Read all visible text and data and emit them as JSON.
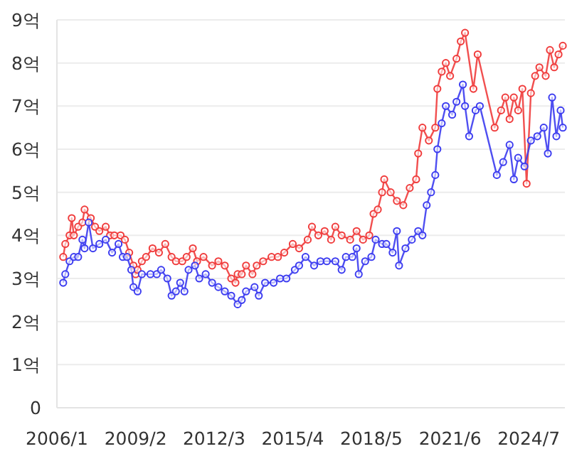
{
  "chart_data": {
    "type": "line",
    "marker": "circle",
    "grid": "y",
    "xlim": [
      "2006-01",
      "2025-12"
    ],
    "ylim": [
      0,
      9
    ],
    "xticks": [
      {
        "value": "2006-01",
        "label": "2006/1"
      },
      {
        "value": "2009-02",
        "label": "2009/2"
      },
      {
        "value": "2012-03",
        "label": "2012/3"
      },
      {
        "value": "2015-04",
        "label": "2015/4"
      },
      {
        "value": "2018-05",
        "label": "2018/5"
      },
      {
        "value": "2021-06",
        "label": "2021/6"
      },
      {
        "value": "2024-07",
        "label": "2024/7"
      }
    ],
    "yticks": [
      0,
      {
        "value": 1,
        "label": "1억"
      },
      {
        "value": 2,
        "label": "2억"
      },
      {
        "value": 3,
        "label": "3억"
      },
      {
        "value": 4,
        "label": "4억"
      },
      {
        "value": 5,
        "label": "5억"
      },
      {
        "value": 6,
        "label": "6억"
      },
      {
        "value": 7,
        "label": "7억"
      },
      {
        "value": 8,
        "label": "8억"
      },
      {
        "value": 9,
        "label": "9억"
      }
    ],
    "series": [
      {
        "color": "#f03c3c",
        "x": [
          "2006-04",
          "2006-05",
          "2006-07",
          "2006-08",
          "2006-09",
          "2006-11",
          "2007-01",
          "2007-02",
          "2007-05",
          "2007-07",
          "2007-09",
          "2007-12",
          "2008-02",
          "2008-04",
          "2008-07",
          "2008-09",
          "2008-11",
          "2009-01",
          "2009-02",
          "2009-03",
          "2009-05",
          "2009-07",
          "2009-10",
          "2010-01",
          "2010-04",
          "2010-07",
          "2010-09",
          "2010-12",
          "2011-02",
          "2011-05",
          "2011-07",
          "2011-10",
          "2012-02",
          "2012-05",
          "2012-08",
          "2012-11",
          "2013-01",
          "2013-02",
          "2013-04",
          "2013-06",
          "2013-09",
          "2013-11",
          "2014-02",
          "2014-06",
          "2014-09",
          "2014-12",
          "2015-04",
          "2015-07",
          "2015-11",
          "2016-01",
          "2016-04",
          "2016-07",
          "2016-10",
          "2016-12",
          "2017-03",
          "2017-07",
          "2017-10",
          "2018-01",
          "2018-04",
          "2018-06",
          "2018-08",
          "2018-10",
          "2018-11",
          "2019-02",
          "2019-05",
          "2019-08",
          "2019-11",
          "2020-02",
          "2020-03",
          "2020-05",
          "2020-08",
          "2020-11",
          "2020-12",
          "2021-02",
          "2021-04",
          "2021-06",
          "2021-09",
          "2021-11",
          "2022-01",
          "2022-05",
          "2022-07",
          "2023-03",
          "2023-06",
          "2023-08",
          "2023-10",
          "2023-12",
          "2024-02",
          "2024-04",
          "2024-06",
          "2024-08",
          "2024-10",
          "2024-12",
          "2025-03",
          "2025-05",
          "2025-07",
          "2025-09",
          "2025-11"
        ],
        "values": [
          3.5,
          3.8,
          4.0,
          4.4,
          4.0,
          4.2,
          4.3,
          4.6,
          4.4,
          4.2,
          4.1,
          4.2,
          4.0,
          4.0,
          4.0,
          3.9,
          3.6,
          3.3,
          3.1,
          3.2,
          3.4,
          3.5,
          3.7,
          3.6,
          3.8,
          3.5,
          3.4,
          3.4,
          3.5,
          3.7,
          3.4,
          3.5,
          3.3,
          3.4,
          3.3,
          3.0,
          2.9,
          3.1,
          3.1,
          3.3,
          3.1,
          3.3,
          3.4,
          3.5,
          3.5,
          3.6,
          3.8,
          3.7,
          3.9,
          4.2,
          4.0,
          4.1,
          3.9,
          4.2,
          4.0,
          3.9,
          4.1,
          3.9,
          4.0,
          4.5,
          4.6,
          5.0,
          5.3,
          5.0,
          4.8,
          4.7,
          5.1,
          5.3,
          5.9,
          6.5,
          6.2,
          6.5,
          7.4,
          7.8,
          8.0,
          7.7,
          8.1,
          8.5,
          8.7,
          7.4,
          8.2,
          6.5,
          6.9,
          7.2,
          6.7,
          7.2,
          6.9,
          7.4,
          5.2,
          7.3,
          7.7,
          7.9,
          7.7,
          8.3,
          7.9,
          8.2,
          8.4
        ]
      },
      {
        "color": "#3c3cf0",
        "x": [
          "2006-04",
          "2006-05",
          "2006-07",
          "2006-09",
          "2006-11",
          "2007-01",
          "2007-02",
          "2007-04",
          "2007-06",
          "2007-09",
          "2007-12",
          "2008-03",
          "2008-06",
          "2008-08",
          "2008-10",
          "2008-12",
          "2009-01",
          "2009-03",
          "2009-05",
          "2009-09",
          "2009-12",
          "2010-02",
          "2010-05",
          "2010-07",
          "2010-09",
          "2010-11",
          "2011-01",
          "2011-03",
          "2011-06",
          "2011-08",
          "2011-11",
          "2012-02",
          "2012-05",
          "2012-08",
          "2012-11",
          "2013-02",
          "2013-04",
          "2013-06",
          "2013-10",
          "2013-12",
          "2014-03",
          "2014-07",
          "2014-10",
          "2015-01",
          "2015-05",
          "2015-07",
          "2015-10",
          "2016-02",
          "2016-05",
          "2016-08",
          "2016-12",
          "2017-03",
          "2017-05",
          "2017-08",
          "2017-10",
          "2017-11",
          "2018-02",
          "2018-05",
          "2018-07",
          "2018-10",
          "2018-12",
          "2019-03",
          "2019-05",
          "2019-06",
          "2019-09",
          "2019-12",
          "2020-03",
          "2020-05",
          "2020-07",
          "2020-09",
          "2020-11",
          "2020-12",
          "2021-02",
          "2021-04",
          "2021-07",
          "2021-09",
          "2021-12",
          "2022-01",
          "2022-03",
          "2022-06",
          "2022-08",
          "2023-04",
          "2023-07",
          "2023-10",
          "2023-12",
          "2024-02",
          "2024-05",
          "2024-08",
          "2024-11",
          "2025-02",
          "2025-04",
          "2025-06",
          "2025-08",
          "2025-10",
          "2025-11"
        ],
        "values": [
          2.9,
          3.1,
          3.4,
          3.5,
          3.5,
          3.9,
          3.7,
          4.3,
          3.7,
          3.8,
          3.9,
          3.6,
          3.8,
          3.5,
          3.5,
          3.2,
          2.8,
          2.7,
          3.1,
          3.1,
          3.1,
          3.2,
          3.0,
          2.6,
          2.7,
          2.9,
          2.7,
          3.2,
          3.3,
          3.0,
          3.1,
          2.9,
          2.8,
          2.7,
          2.6,
          2.4,
          2.5,
          2.7,
          2.8,
          2.6,
          2.9,
          2.9,
          3.0,
          3.0,
          3.2,
          3.3,
          3.5,
          3.3,
          3.4,
          3.4,
          3.4,
          3.2,
          3.5,
          3.5,
          3.7,
          3.1,
          3.4,
          3.5,
          3.9,
          3.8,
          3.8,
          3.6,
          4.1,
          3.3,
          3.7,
          3.9,
          4.1,
          4.0,
          4.7,
          5.0,
          5.4,
          6.0,
          6.6,
          7.0,
          6.8,
          7.1,
          7.5,
          7.0,
          6.3,
          6.9,
          7.0,
          5.4,
          5.7,
          6.1,
          5.3,
          5.8,
          5.6,
          6.2,
          6.3,
          6.5,
          5.9,
          7.2,
          6.3,
          6.9,
          6.5
        ]
      }
    ]
  }
}
